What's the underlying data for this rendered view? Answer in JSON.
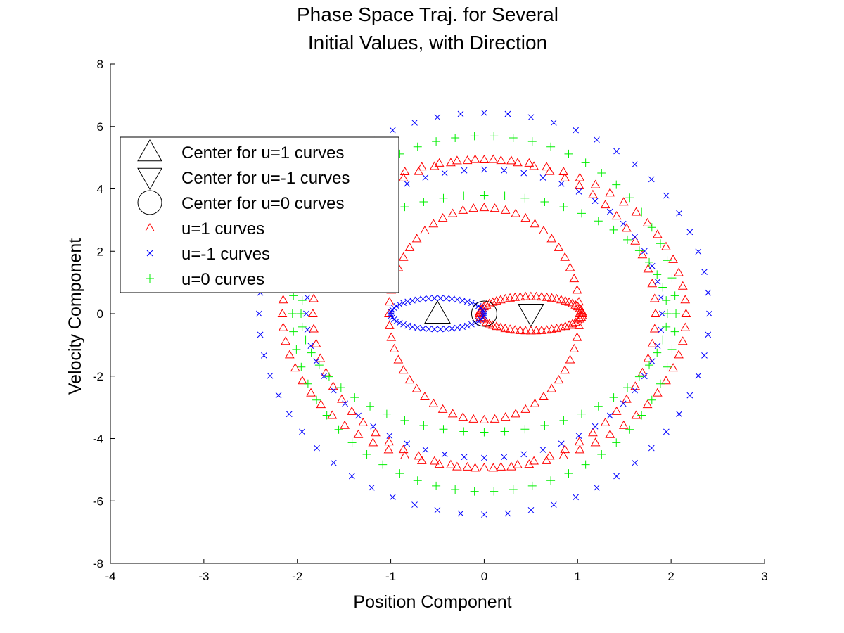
{
  "chart_data": {
    "type": "scatter",
    "title": [
      "Phase Space Traj. for Several",
      "Initial Values, with Direction"
    ],
    "xlabel": "Position Component",
    "ylabel": "Velocity Component",
    "xlim": [
      -4,
      3
    ],
    "ylim": [
      -8,
      8
    ],
    "xticks": [
      -4,
      -3,
      -2,
      -1,
      0,
      1,
      2,
      3
    ],
    "yticks": [
      -8,
      -6,
      -4,
      -2,
      0,
      2,
      4,
      6,
      8
    ],
    "grid": false,
    "legend_position": "top-left",
    "legend": [
      {
        "label": "Center for u=1 curves",
        "marker": "triangle-up-large",
        "color": "#000000"
      },
      {
        "label": "Center for u=-1 curves",
        "marker": "triangle-down-large",
        "color": "#000000"
      },
      {
        "label": "Center for u=0 curves",
        "marker": "circle-large",
        "color": "#000000"
      },
      {
        "label": "u=1 curves",
        "marker": "triangle-up",
        "color": "#ff0000"
      },
      {
        "label": "u=-1 curves",
        "marker": "x",
        "color": "#0000ff"
      },
      {
        "label": "u=0 curves",
        "marker": "plus",
        "color": "#00ee00"
      }
    ],
    "centers": [
      {
        "name": "Center for u=1 curves",
        "x": -0.5,
        "y": 0,
        "marker": "triangle-up-large"
      },
      {
        "name": "Center for u=-1 curves",
        "x": 0.5,
        "y": 0,
        "marker": "triangle-down-large"
      },
      {
        "name": "Center for u=0 curves",
        "x": 0,
        "y": 0,
        "marker": "circle-large"
      }
    ],
    "series": [
      {
        "name": "u=1 curves",
        "marker": "triangle-up",
        "color": "#ff0000",
        "curves": [
          {
            "cx": 0.5,
            "amp": 0.55,
            "sx": 1,
            "sy": 1,
            "n": 60
          },
          {
            "cx": 0.0,
            "amp": 1.7,
            "sx": 0.6,
            "sy": 2.0,
            "n": 56
          },
          {
            "cx": 0.0,
            "amp": 2.35,
            "sx": 0.78,
            "sy": 2.1,
            "n": 64
          },
          {
            "cx": 0.0,
            "amp": 3.0,
            "sx": 0.72,
            "sy": 1.65,
            "n": 70
          }
        ]
      },
      {
        "name": "u=-1 curves",
        "marker": "x",
        "color": "#0000ff",
        "curves": [
          {
            "cx": -0.5,
            "amp": 0.5,
            "sx": 1,
            "sy": 1.0,
            "n": 50
          },
          {
            "cx": 0.0,
            "amp": 2.8,
            "sx": 0.68,
            "sy": 1.65,
            "n": 56
          },
          {
            "cx": 0.0,
            "amp": 3.3,
            "sx": 0.73,
            "sy": 1.95,
            "n": 60
          }
        ]
      },
      {
        "name": "u=0 curves",
        "marker": "plus",
        "color": "#00ee00",
        "curves": [
          {
            "cx": 0.0,
            "amp": 2.45,
            "sx": 0.8,
            "sy": 1.55,
            "n": 56
          },
          {
            "cx": 0.0,
            "amp": 2.85,
            "sx": 0.72,
            "sy": 2.0,
            "n": 62
          }
        ]
      }
    ]
  }
}
